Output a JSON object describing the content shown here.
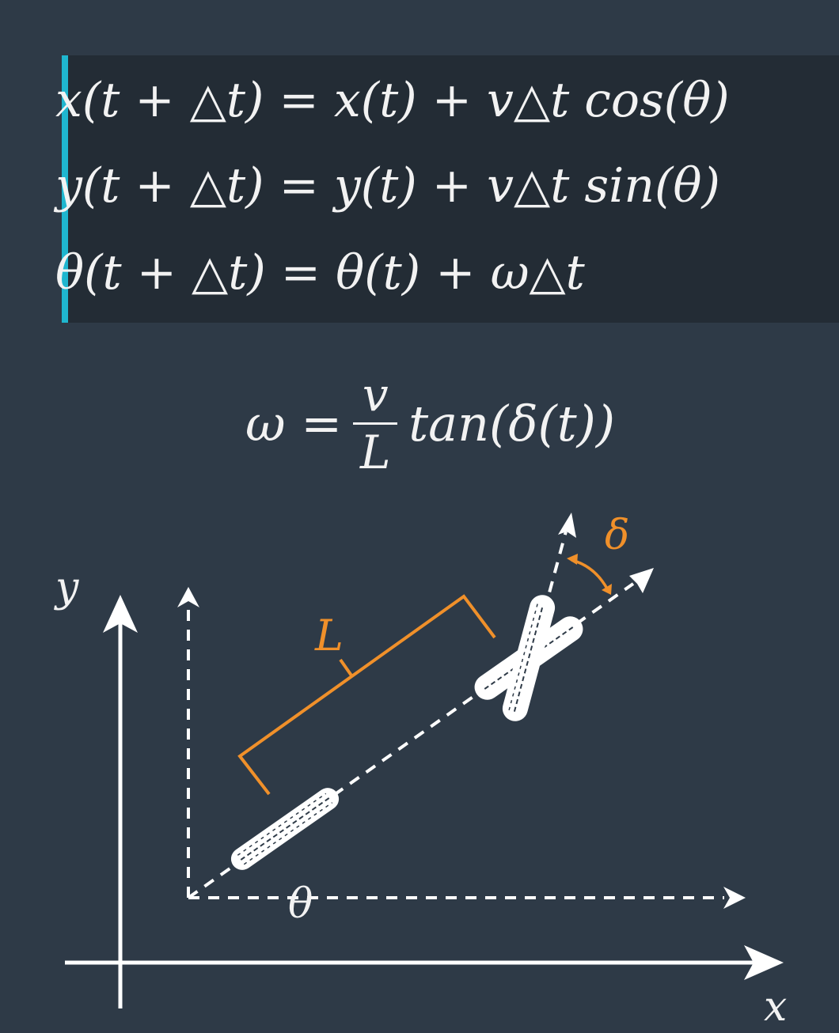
{
  "equations": {
    "eq1": "x(t + △t) = x(t) + v△t cos(θ)",
    "eq2": "y(t + △t) = y(t) + v△t sin(θ)",
    "eq3": "θ(t + △t) = θ(t)  + ω△t"
  },
  "omega_equation": {
    "lhs": "ω =",
    "numerator": "v",
    "denominator": "L",
    "rhs": "tan(δ(t))"
  },
  "diagram": {
    "axis_x_label": "x",
    "axis_y_label": "y",
    "length_label": "L",
    "steer_label": "δ",
    "heading_label": "θ",
    "accent_color": "#f0902a",
    "line_color": "#ffffff",
    "box_accent": "#1fb6cf"
  }
}
